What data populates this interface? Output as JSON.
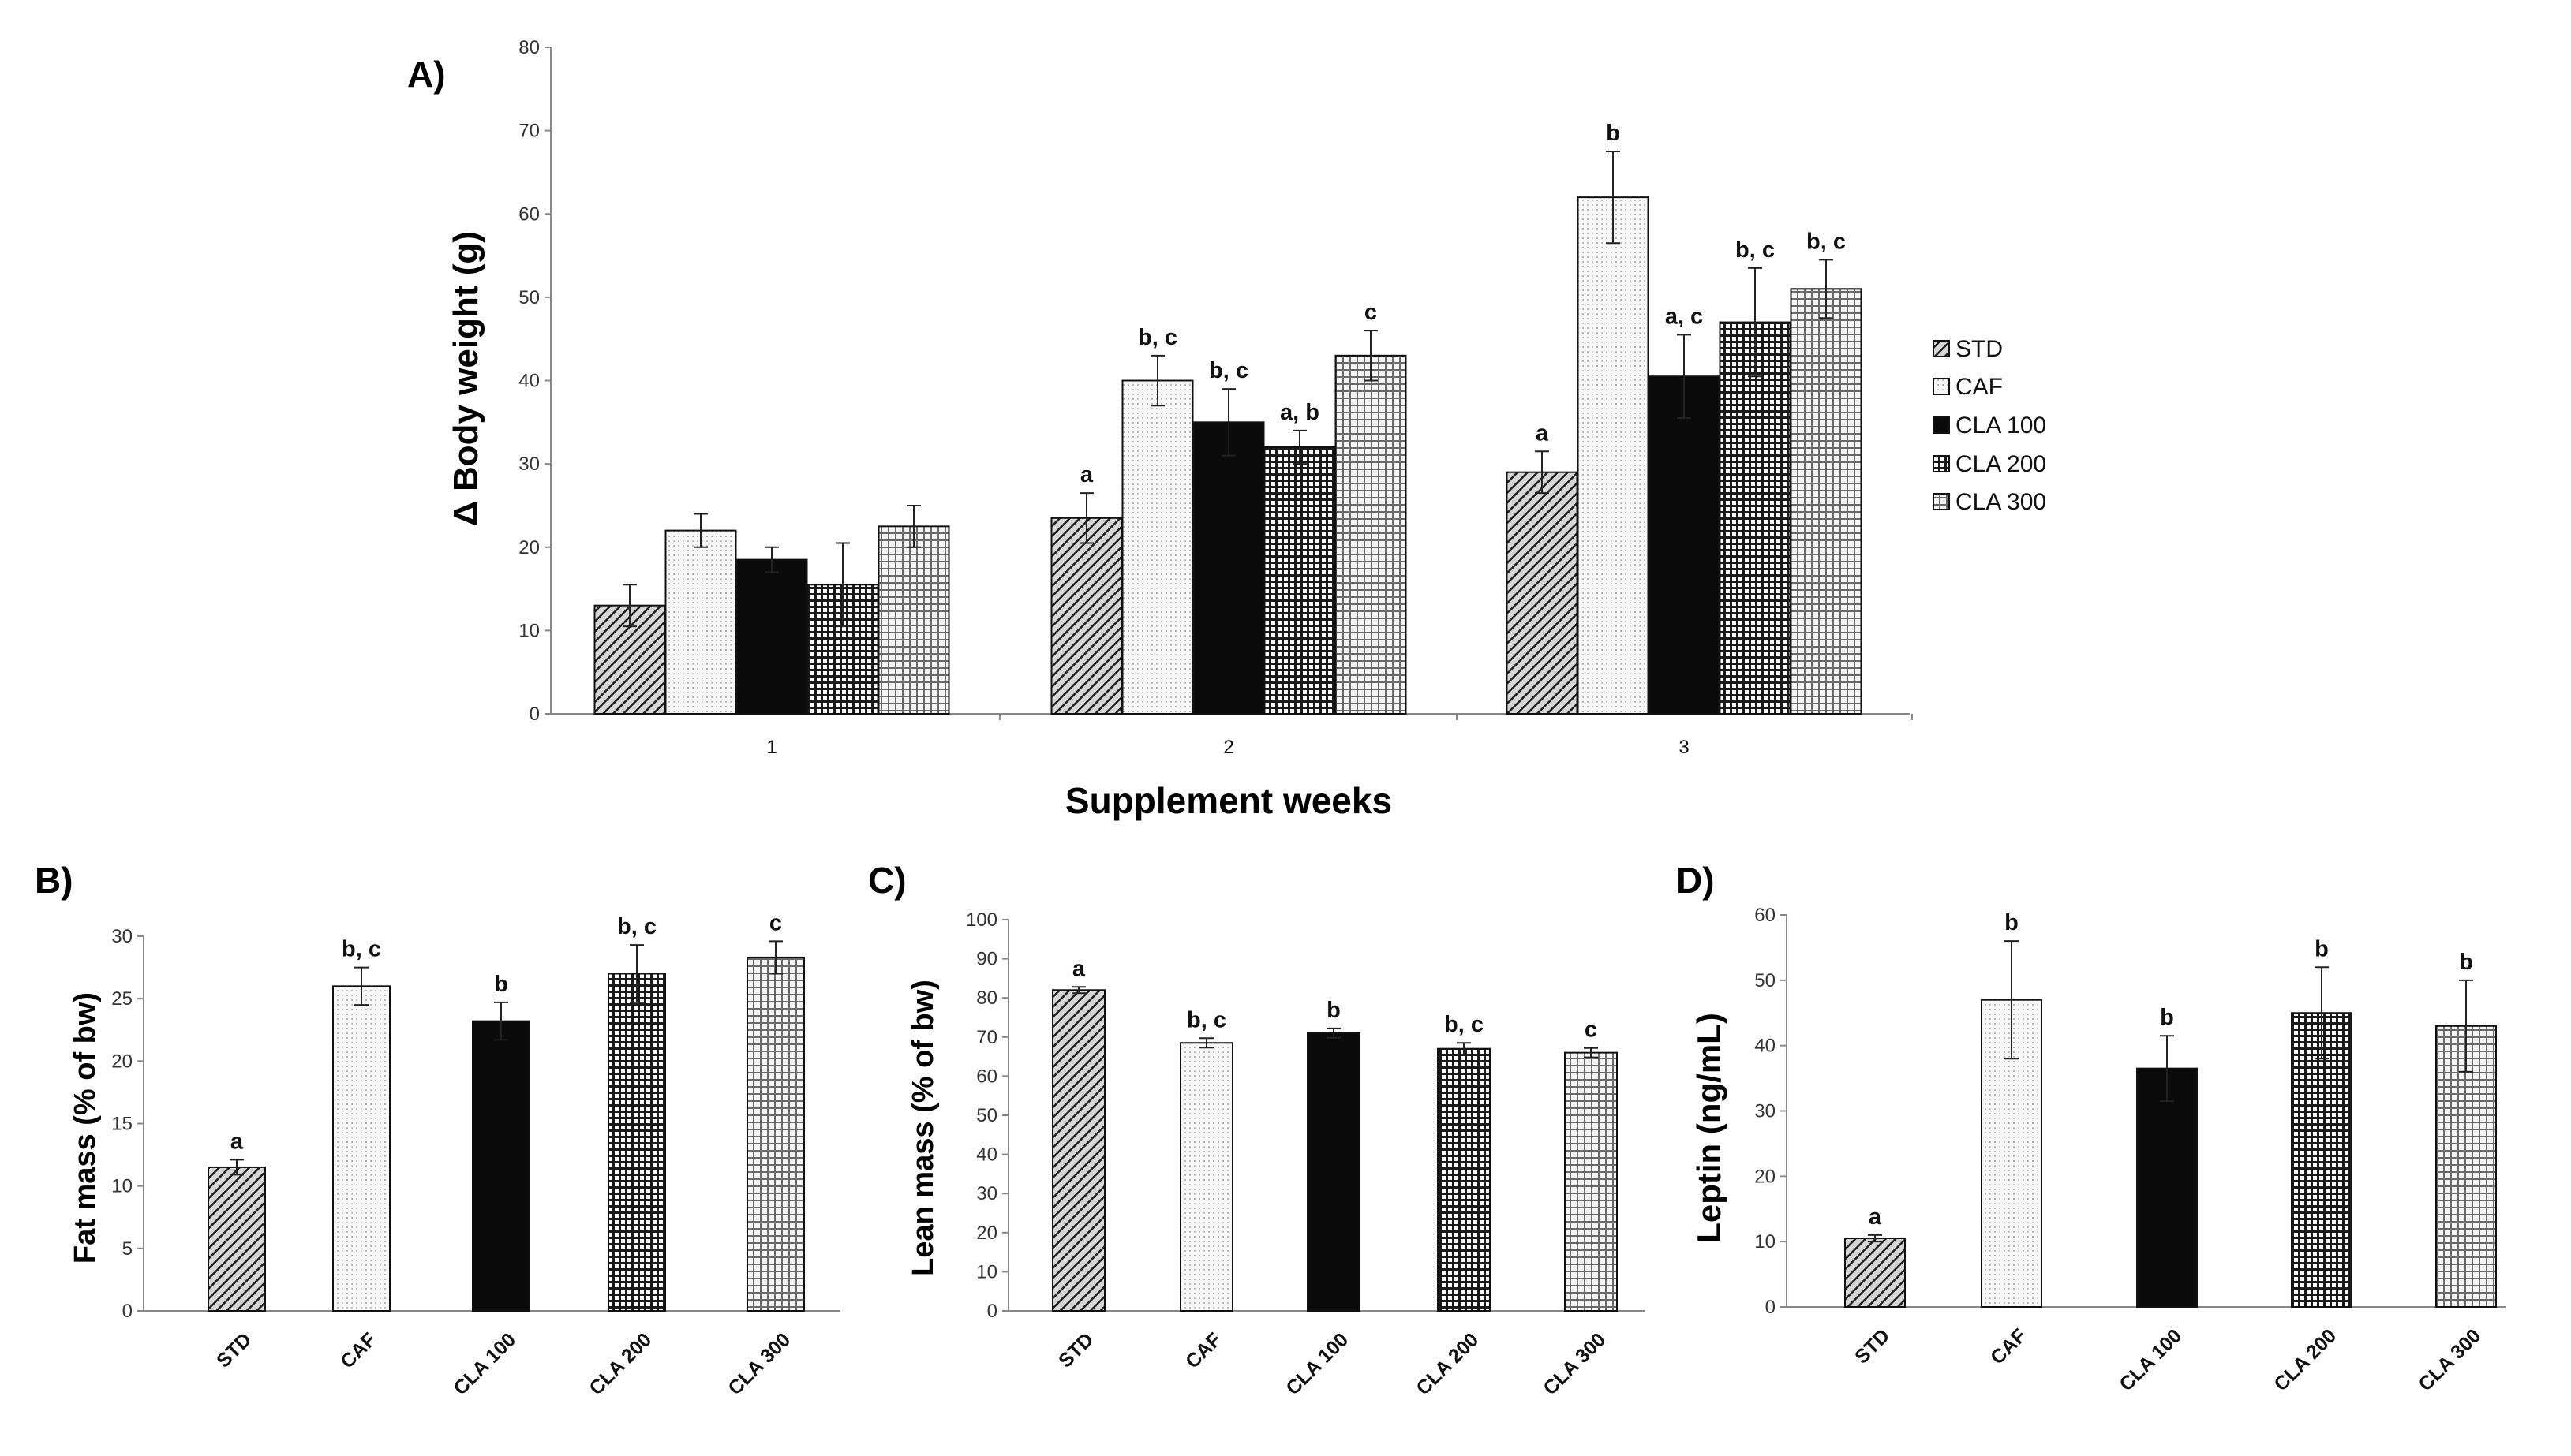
{
  "chart_data": [
    {
      "panel": "A)",
      "type": "bar",
      "ylabel": "Δ Body weight (g)",
      "xlabel": "Supplement weeks",
      "ylim": [
        0,
        80
      ],
      "yticks": [
        0,
        10,
        20,
        30,
        40,
        50,
        60,
        70,
        80
      ],
      "categories": [
        "1",
        "2",
        "3"
      ],
      "legend": [
        "STD",
        "CAF",
        "CLA 100",
        "CLA 200",
        "CLA 300"
      ],
      "legend_position": "right",
      "series": [
        {
          "name": "STD",
          "values": [
            13,
            23.5,
            29
          ],
          "errors": [
            2.5,
            3,
            2.5
          ],
          "labels": [
            "",
            "a",
            "a"
          ]
        },
        {
          "name": "CAF",
          "values": [
            22,
            40,
            62
          ],
          "errors": [
            2,
            3,
            5.5
          ],
          "labels": [
            "",
            "b, c",
            "b"
          ]
        },
        {
          "name": "CLA 100",
          "values": [
            18.5,
            35,
            40.5
          ],
          "errors": [
            1.5,
            4,
            5
          ],
          "labels": [
            "",
            "b, c",
            "a, c"
          ]
        },
        {
          "name": "CLA 200",
          "values": [
            15.5,
            32,
            47
          ],
          "errors": [
            5,
            2,
            6.5
          ],
          "labels": [
            "",
            "a, b",
            "b, c"
          ]
        },
        {
          "name": "CLA 300",
          "values": [
            22.5,
            43,
            51
          ],
          "errors": [
            2.5,
            3,
            3.5
          ],
          "labels": [
            "",
            "c",
            "b, c"
          ]
        }
      ]
    },
    {
      "panel": "B)",
      "type": "bar",
      "ylabel": "Fat mass (% of bw)",
      "ylim": [
        0,
        30
      ],
      "yticks": [
        0,
        5,
        10,
        15,
        20,
        25,
        30
      ],
      "categories": [
        "STD",
        "CAF",
        "CLA 100",
        "CLA 200",
        "CLA 300"
      ],
      "values": [
        11.5,
        26,
        23.2,
        27,
        28.3
      ],
      "errors": [
        0.6,
        1.5,
        1.5,
        2.3,
        1.3
      ],
      "labels": [
        "a",
        "b, c",
        "b",
        "b, c",
        "c"
      ]
    },
    {
      "panel": "C)",
      "type": "bar",
      "ylabel": "Lean mass (% of bw)",
      "ylim": [
        0,
        100
      ],
      "yticks": [
        0,
        10,
        20,
        30,
        40,
        50,
        60,
        70,
        80,
        90,
        100
      ],
      "categories": [
        "STD",
        "CAF",
        "CLA 100",
        "CLA 200",
        "CLA 300"
      ],
      "values": [
        82,
        68.5,
        71,
        67,
        66
      ],
      "errors": [
        0.8,
        1.2,
        1.2,
        1.5,
        1.2
      ],
      "labels": [
        "a",
        "b, c",
        "b",
        "b, c",
        "c"
      ]
    },
    {
      "panel": "D)",
      "type": "bar",
      "ylabel": "Leptin (ng/mL)",
      "ylim": [
        0,
        60
      ],
      "yticks": [
        0,
        10,
        20,
        30,
        40,
        50,
        60
      ],
      "categories": [
        "STD",
        "CAF",
        "CLA 100",
        "CLA 200",
        "CLA 300"
      ],
      "values": [
        10.5,
        47,
        36.5,
        45,
        43
      ],
      "errors": [
        0.5,
        9,
        5,
        7,
        7
      ],
      "labels": [
        "a",
        "b",
        "b",
        "b",
        "b"
      ]
    }
  ]
}
